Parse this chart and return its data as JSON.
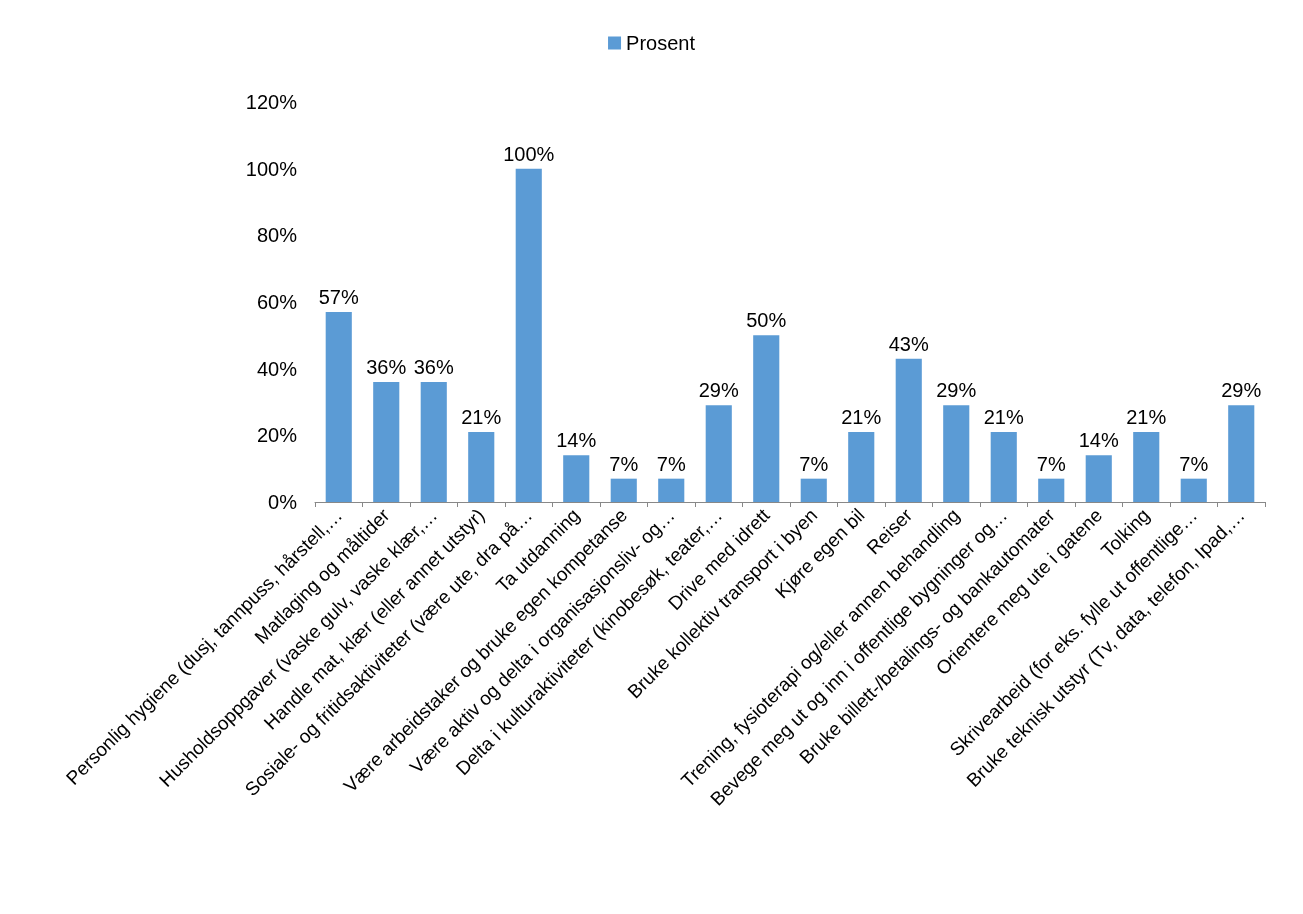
{
  "chart_data": {
    "type": "bar",
    "categories": [
      "Personlig hygiene (dusj, tannpuss, hårstell,…",
      "Matlaging og måltider",
      "Husholdsoppgaver (vaske gulv, vaske klær,…",
      "Handle mat, klær (eller annet utstyr)",
      "Sosiale- og fritidsaktiviteter (være ute, dra på…",
      "Ta utdanning",
      "Være arbeidstaker og bruke egen kompetanse",
      "Være aktiv og delta i organisasjonsliv- og…",
      "Delta i kulturaktiviteter (kinobesøk, teater,…",
      "Drive med idrett",
      "Bruke kollektiv transport i byen",
      "Kjøre egen bil",
      "Reiser",
      "Trening, fysioterapi og/eller annen behandling",
      "Bevege meg ut og inn i offentlige bygninger og…",
      "Bruke billett-/betalings- og bankautomater",
      "Orientere meg ute i gatene",
      "Tolking",
      "Skrivearbeid (for eks. fylle ut offentlige…",
      "Bruke teknisk utstyr (Tv, data, telefon, Ipad,…"
    ],
    "series": [
      {
        "name": "Prosent",
        "color": "#5b9bd5",
        "values": [
          57,
          36,
          36,
          21,
          100,
          14,
          7,
          7,
          29,
          50,
          7,
          21,
          43,
          29,
          21,
          7,
          14,
          21,
          7,
          29
        ],
        "value_labels": [
          "57%",
          "36%",
          "36%",
          "21%",
          "100%",
          "14%",
          "7%",
          "7%",
          "29%",
          "50%",
          "7%",
          "21%",
          "43%",
          "29%",
          "21%",
          "7%",
          "14%",
          "21%",
          "7%",
          "29%"
        ]
      }
    ],
    "ylim": [
      0,
      120
    ],
    "yticks": [
      {
        "value": 0,
        "label": "0%"
      },
      {
        "value": 20,
        "label": "20%"
      },
      {
        "value": 40,
        "label": "40%"
      },
      {
        "value": 60,
        "label": "60%"
      },
      {
        "value": 80,
        "label": "80%"
      },
      {
        "value": 100,
        "label": "100%"
      },
      {
        "value": 120,
        "label": "120%"
      }
    ],
    "grid": false,
    "legend": "top"
  }
}
